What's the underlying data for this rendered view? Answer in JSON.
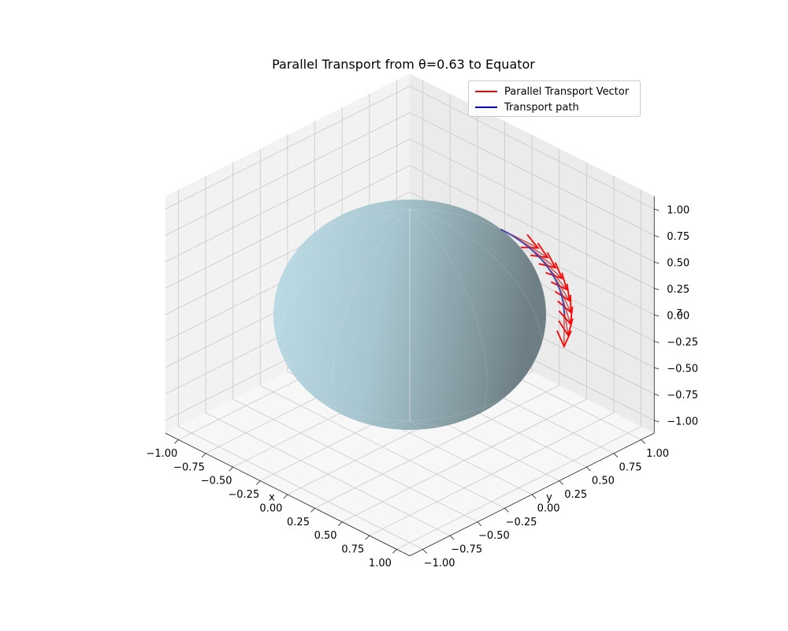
{
  "chart_data": {
    "type": "3d-surface",
    "title": "Parallel Transport from θ=0.63 to Equator",
    "xlabel": "x",
    "ylabel": "y",
    "zlabel": "z",
    "xlim": [
      -1,
      1
    ],
    "ylim": [
      -1,
      1
    ],
    "zlim": [
      -1,
      1
    ],
    "x_ticks": [
      "−1.00",
      "−0.75",
      "−0.50",
      "−0.25",
      "0.00",
      "0.25",
      "0.50",
      "0.75",
      "1.00"
    ],
    "y_ticks": [
      "−1.00",
      "−0.75",
      "−0.50",
      "−0.25",
      "0.00",
      "0.25",
      "0.50",
      "0.75",
      "1.00"
    ],
    "z_ticks": [
      "−1.00",
      "−0.75",
      "−0.50",
      "−0.25",
      "0.00",
      "0.25",
      "0.50",
      "0.75",
      "1.00"
    ],
    "view": {
      "elev": 20,
      "azim": -45
    },
    "grid": true,
    "legend_placement": "upper-right",
    "surface": {
      "shape": "unit sphere",
      "color": "#add8e6",
      "alpha": 0.6
    },
    "series": [
      {
        "name": "Parallel Transport Vector",
        "color": "#ff0000",
        "kind": "arrows",
        "theta_start": 0.63,
        "theta_end": 1.5708,
        "count": 10,
        "phi": 0.7854,
        "vector": "e_theta",
        "length": 0.3
      },
      {
        "name": "Transport path",
        "color": "#0000ff",
        "kind": "line",
        "theta_start": 0.63,
        "theta_end": 1.5708,
        "phi": 0.7854
      }
    ]
  }
}
